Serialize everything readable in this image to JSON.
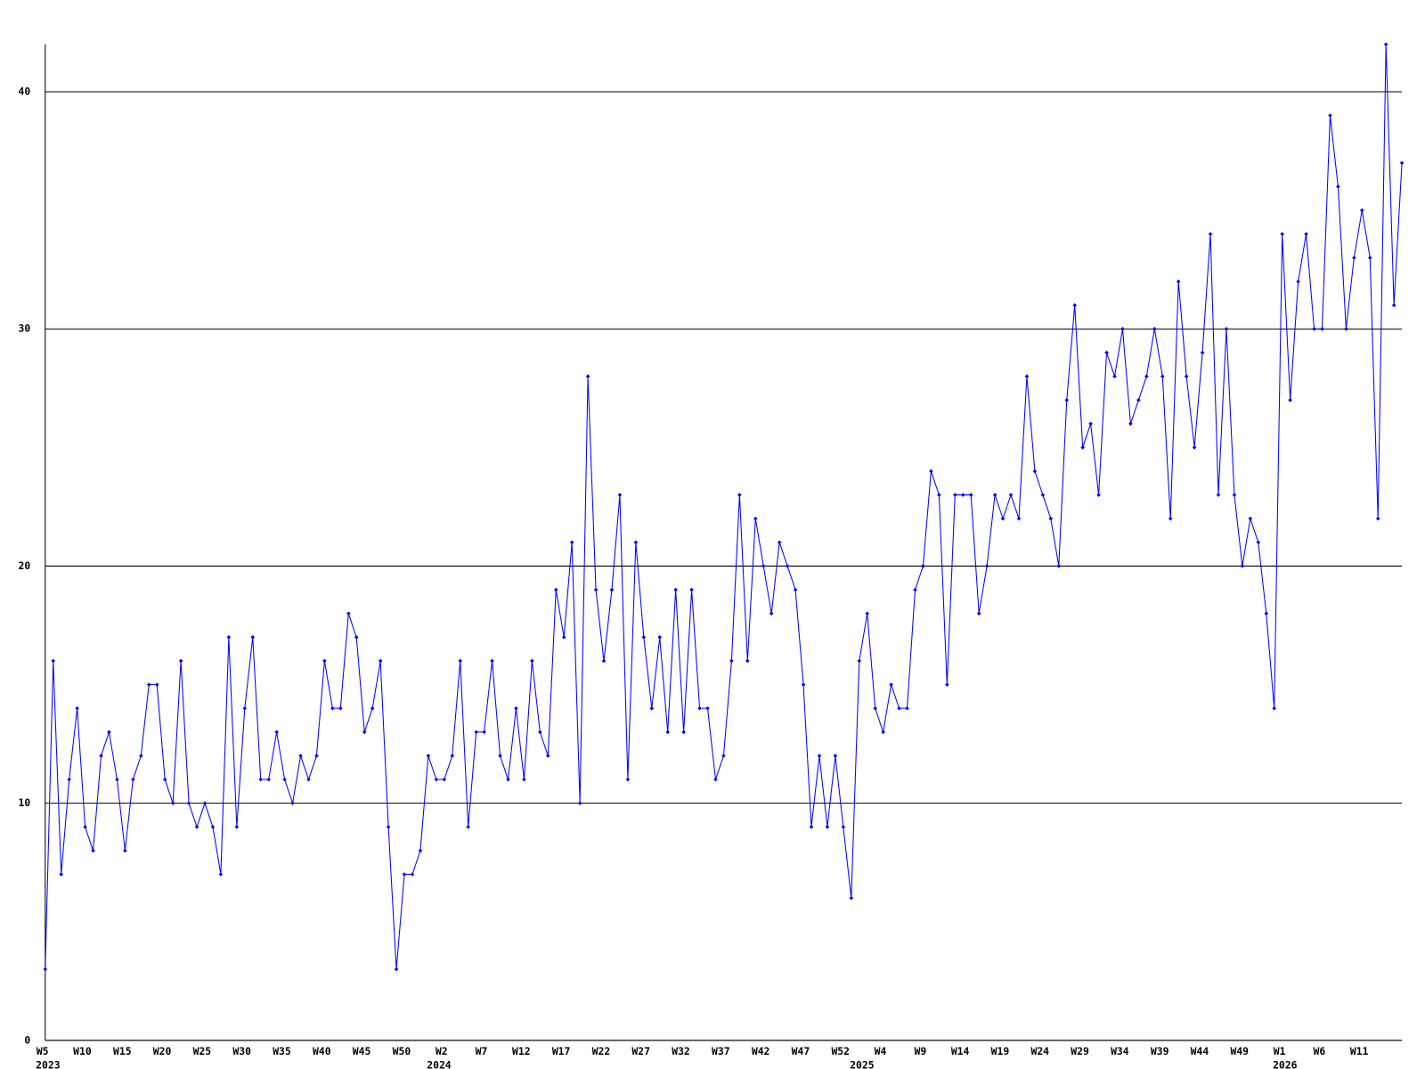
{
  "chart_data": {
    "type": "line",
    "categories": [
      "W5",
      null,
      null,
      null,
      null,
      "W10",
      null,
      null,
      null,
      null,
      "W15",
      null,
      null,
      null,
      null,
      "W20",
      null,
      null,
      null,
      null,
      "W25",
      null,
      null,
      null,
      null,
      "W30",
      null,
      null,
      null,
      null,
      "W35",
      null,
      null,
      null,
      null,
      "W40",
      null,
      null,
      null,
      null,
      "W45",
      null,
      null,
      null,
      null,
      "W50",
      null,
      null,
      null,
      null,
      "W2",
      null,
      null,
      null,
      null,
      "W7",
      null,
      null,
      null,
      null,
      "W12",
      null,
      null,
      null,
      null,
      "W17",
      null,
      null,
      null,
      null,
      "W22",
      null,
      null,
      null,
      null,
      "W27",
      null,
      null,
      null,
      null,
      "W32",
      null,
      null,
      null,
      null,
      "W37",
      null,
      null,
      null,
      null,
      "W42",
      null,
      null,
      null,
      null,
      "W47",
      null,
      null,
      null,
      null,
      "W52",
      null,
      null,
      null,
      null,
      "W4",
      null,
      null,
      null,
      null,
      "W9",
      null,
      null,
      null,
      null,
      "W14",
      null,
      null,
      null,
      null,
      "W19",
      null,
      null,
      null,
      null,
      "W24",
      null,
      null,
      null,
      null,
      "W29",
      null,
      null,
      null,
      null,
      "W34",
      null,
      null,
      null,
      null,
      "W39",
      null,
      null,
      null,
      null,
      "W44",
      null,
      null,
      null,
      null,
      "W49",
      null,
      null,
      null,
      null,
      "W1",
      null,
      null,
      null,
      null,
      "W6",
      null,
      null,
      null,
      null,
      "W11",
      null,
      null,
      null,
      null,
      null
    ],
    "years": [
      "2023",
      null,
      null,
      null,
      null,
      null,
      null,
      null,
      null,
      null,
      null,
      null,
      null,
      null,
      null,
      null,
      null,
      null,
      null,
      null,
      null,
      null,
      null,
      null,
      null,
      null,
      null,
      null,
      null,
      null,
      null,
      null,
      null,
      null,
      null,
      null,
      null,
      null,
      null,
      null,
      null,
      null,
      null,
      null,
      null,
      null,
      null,
      null,
      null,
      "2024",
      null,
      null,
      null,
      null,
      null,
      null,
      null,
      null,
      null,
      null,
      null,
      null,
      null,
      null,
      null,
      null,
      null,
      null,
      null,
      null,
      null,
      null,
      null,
      null,
      null,
      null,
      null,
      null,
      null,
      null,
      null,
      null,
      null,
      null,
      null,
      null,
      null,
      null,
      null,
      null,
      null,
      null,
      null,
      null,
      null,
      null,
      null,
      null,
      null,
      null,
      null,
      null,
      "2025",
      null,
      null,
      null,
      null,
      null,
      null,
      null,
      null,
      null,
      null,
      null,
      null,
      null,
      null,
      null,
      null,
      null,
      null,
      null,
      null,
      null,
      null,
      null,
      null,
      null,
      null,
      null,
      null,
      null,
      null,
      null,
      null,
      null,
      null,
      null,
      null,
      null,
      null,
      null,
      null,
      null,
      null,
      null,
      null,
      null,
      null,
      null,
      null,
      null,
      null,
      null,
      null,
      "2026",
      null,
      null,
      null,
      null,
      null,
      null,
      null,
      null,
      null,
      null,
      null,
      null,
      null,
      null,
      null
    ],
    "values": [
      3,
      16,
      7,
      11,
      14,
      9,
      8,
      12,
      13,
      11,
      8,
      11,
      12,
      15,
      15,
      11,
      10,
      16,
      10,
      9,
      10,
      9,
      7,
      17,
      9,
      14,
      17,
      11,
      11,
      13,
      11,
      10,
      12,
      11,
      12,
      16,
      14,
      14,
      18,
      17,
      13,
      14,
      16,
      9,
      3,
      7,
      7,
      8,
      12,
      11,
      11,
      12,
      16,
      9,
      13,
      13,
      16,
      12,
      11,
      14,
      11,
      16,
      13,
      12,
      19,
      17,
      21,
      10,
      28,
      19,
      16,
      19,
      23,
      11,
      21,
      17,
      14,
      17,
      13,
      19,
      13,
      19,
      14,
      14,
      11,
      12,
      16,
      23,
      16,
      22,
      20,
      18,
      21,
      20,
      19,
      15,
      9,
      12,
      9,
      12,
      9,
      6,
      16,
      18,
      14,
      13,
      15,
      14,
      14,
      19,
      20,
      24,
      23,
      15,
      23,
      23,
      23,
      18,
      20,
      23,
      22,
      23,
      22,
      28,
      24,
      23,
      22,
      20,
      27,
      31,
      25,
      26,
      23,
      29,
      28,
      30,
      26,
      27,
      28,
      30,
      28,
      22,
      32,
      28,
      25,
      29,
      34,
      23,
      30,
      23,
      20,
      22,
      21,
      18,
      14,
      34,
      27,
      32,
      34,
      30,
      30,
      39,
      36,
      30,
      33,
      35,
      33,
      22,
      42,
      31,
      37
    ],
    "color": "#0000ff",
    "ylim": [
      0,
      42
    ],
    "yticks": [
      0,
      10,
      20,
      30,
      40
    ],
    "grid": true
  }
}
